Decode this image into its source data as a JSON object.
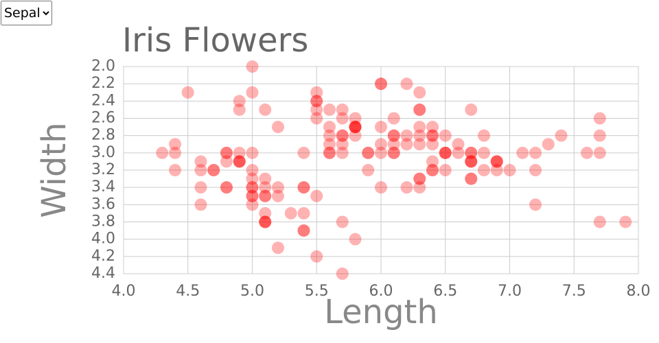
{
  "selector": {
    "options": [
      "Sepal"
    ]
  },
  "chart_data": {
    "type": "scatter",
    "title": "Iris Flowers",
    "x_label": "Length",
    "y_label": "Width",
    "color": "#ff0000",
    "opacity": 0.3,
    "grid": true,
    "y_reversed": true,
    "xlim": [
      4.0,
      8.0
    ],
    "xticks": [
      {
        "value": 4.0,
        "label": "4.0"
      },
      4.5,
      {
        "value": 5.0,
        "label": "5.0"
      },
      5.5,
      {
        "value": 6.0,
        "label": "6.0"
      },
      6.5,
      {
        "value": 7.0,
        "label": "7.0"
      },
      7.5,
      {
        "value": 8.0,
        "label": "8.0"
      }
    ],
    "ylim": [
      2.0,
      4.4
    ],
    "yticks": [
      {
        "value": 2.0,
        "label": "2.0"
      },
      2.2,
      2.4,
      2.6,
      2.8,
      {
        "value": 3.0,
        "label": "3.0"
      },
      3.2,
      3.4,
      3.6,
      3.8,
      {
        "value": 4.0,
        "label": "4.0"
      },
      4.2,
      4.4
    ],
    "x": [
      5.1,
      4.9,
      4.7,
      4.6,
      5.0,
      5.4,
      4.6,
      5.0,
      4.4,
      4.9,
      5.4,
      4.8,
      4.8,
      4.3,
      5.8,
      5.7,
      5.4,
      5.1,
      5.7,
      5.1,
      5.4,
      5.1,
      4.6,
      5.1,
      4.8,
      5.0,
      5.0,
      5.2,
      5.2,
      4.7,
      4.8,
      5.4,
      5.2,
      5.5,
      4.9,
      5.0,
      5.5,
      4.9,
      4.4,
      5.1,
      5.0,
      4.5,
      4.4,
      5.0,
      5.1,
      4.8,
      5.1,
      4.6,
      5.3,
      5.0,
      7.0,
      6.4,
      6.9,
      5.5,
      6.5,
      5.7,
      6.3,
      4.9,
      6.6,
      5.2,
      5.0,
      5.9,
      6.0,
      6.1,
      5.6,
      6.7,
      5.6,
      5.8,
      6.2,
      5.6,
      5.9,
      6.1,
      6.3,
      6.1,
      6.4,
      6.6,
      6.8,
      6.7,
      6.0,
      5.7,
      5.5,
      5.5,
      5.8,
      6.0,
      5.4,
      6.0,
      6.7,
      6.3,
      5.6,
      5.5,
      5.5,
      6.1,
      5.8,
      5.0,
      5.6,
      5.7,
      5.7,
      6.2,
      5.1,
      5.7,
      6.3,
      5.8,
      7.1,
      6.3,
      6.5,
      7.6,
      4.9,
      7.3,
      6.7,
      7.2,
      6.5,
      6.4,
      6.8,
      5.7,
      5.8,
      6.4,
      6.5,
      7.7,
      7.7,
      6.0,
      6.9,
      5.6,
      7.7,
      6.3,
      6.7,
      7.2,
      6.2,
      6.1,
      6.4,
      7.2,
      7.4,
      7.9,
      6.4,
      6.3,
      6.1,
      7.7,
      6.3,
      6.4,
      6.0,
      6.9,
      6.7,
      6.9,
      5.8,
      6.8,
      6.7,
      6.7,
      6.3,
      6.5,
      6.2,
      5.9
    ],
    "values": [
      3.5,
      3.0,
      3.2,
      3.1,
      3.6,
      3.9,
      3.4,
      3.4,
      2.9,
      3.1,
      3.7,
      3.4,
      3.0,
      3.0,
      4.0,
      4.4,
      3.9,
      3.5,
      3.8,
      3.8,
      3.4,
      3.7,
      3.6,
      3.3,
      3.4,
      3.0,
      3.4,
      3.5,
      3.4,
      3.2,
      3.1,
      3.4,
      4.1,
      4.2,
      3.1,
      3.2,
      3.5,
      3.1,
      3.0,
      3.4,
      3.5,
      2.3,
      3.2,
      3.5,
      3.8,
      3.0,
      3.8,
      3.2,
      3.7,
      3.3,
      3.2,
      3.2,
      3.1,
      2.3,
      2.8,
      2.8,
      3.3,
      2.4,
      2.9,
      2.7,
      2.0,
      3.0,
      2.2,
      2.9,
      2.9,
      3.1,
      3.0,
      2.7,
      2.2,
      2.5,
      3.2,
      2.8,
      2.5,
      2.8,
      2.9,
      3.0,
      2.8,
      3.0,
      2.9,
      2.6,
      2.4,
      2.4,
      2.7,
      2.7,
      3.0,
      3.4,
      3.1,
      2.3,
      3.0,
      2.5,
      2.6,
      3.0,
      2.6,
      2.3,
      2.7,
      3.0,
      2.9,
      2.9,
      2.5,
      2.8,
      3.3,
      2.7,
      3.0,
      2.9,
      3.0,
      3.0,
      2.5,
      2.9,
      2.5,
      3.6,
      3.2,
      2.7,
      3.0,
      2.5,
      2.8,
      3.2,
      3.0,
      3.8,
      2.6,
      2.2,
      3.2,
      2.8,
      2.8,
      2.7,
      3.3,
      3.2,
      2.8,
      3.0,
      2.8,
      3.0,
      2.8,
      3.8,
      2.8,
      2.8,
      2.6,
      3.0,
      3.4,
      3.1,
      3.0,
      3.1,
      3.1,
      3.1,
      2.7,
      3.2,
      3.3,
      3.0,
      2.5,
      3.0,
      3.4,
      3.0
    ]
  }
}
